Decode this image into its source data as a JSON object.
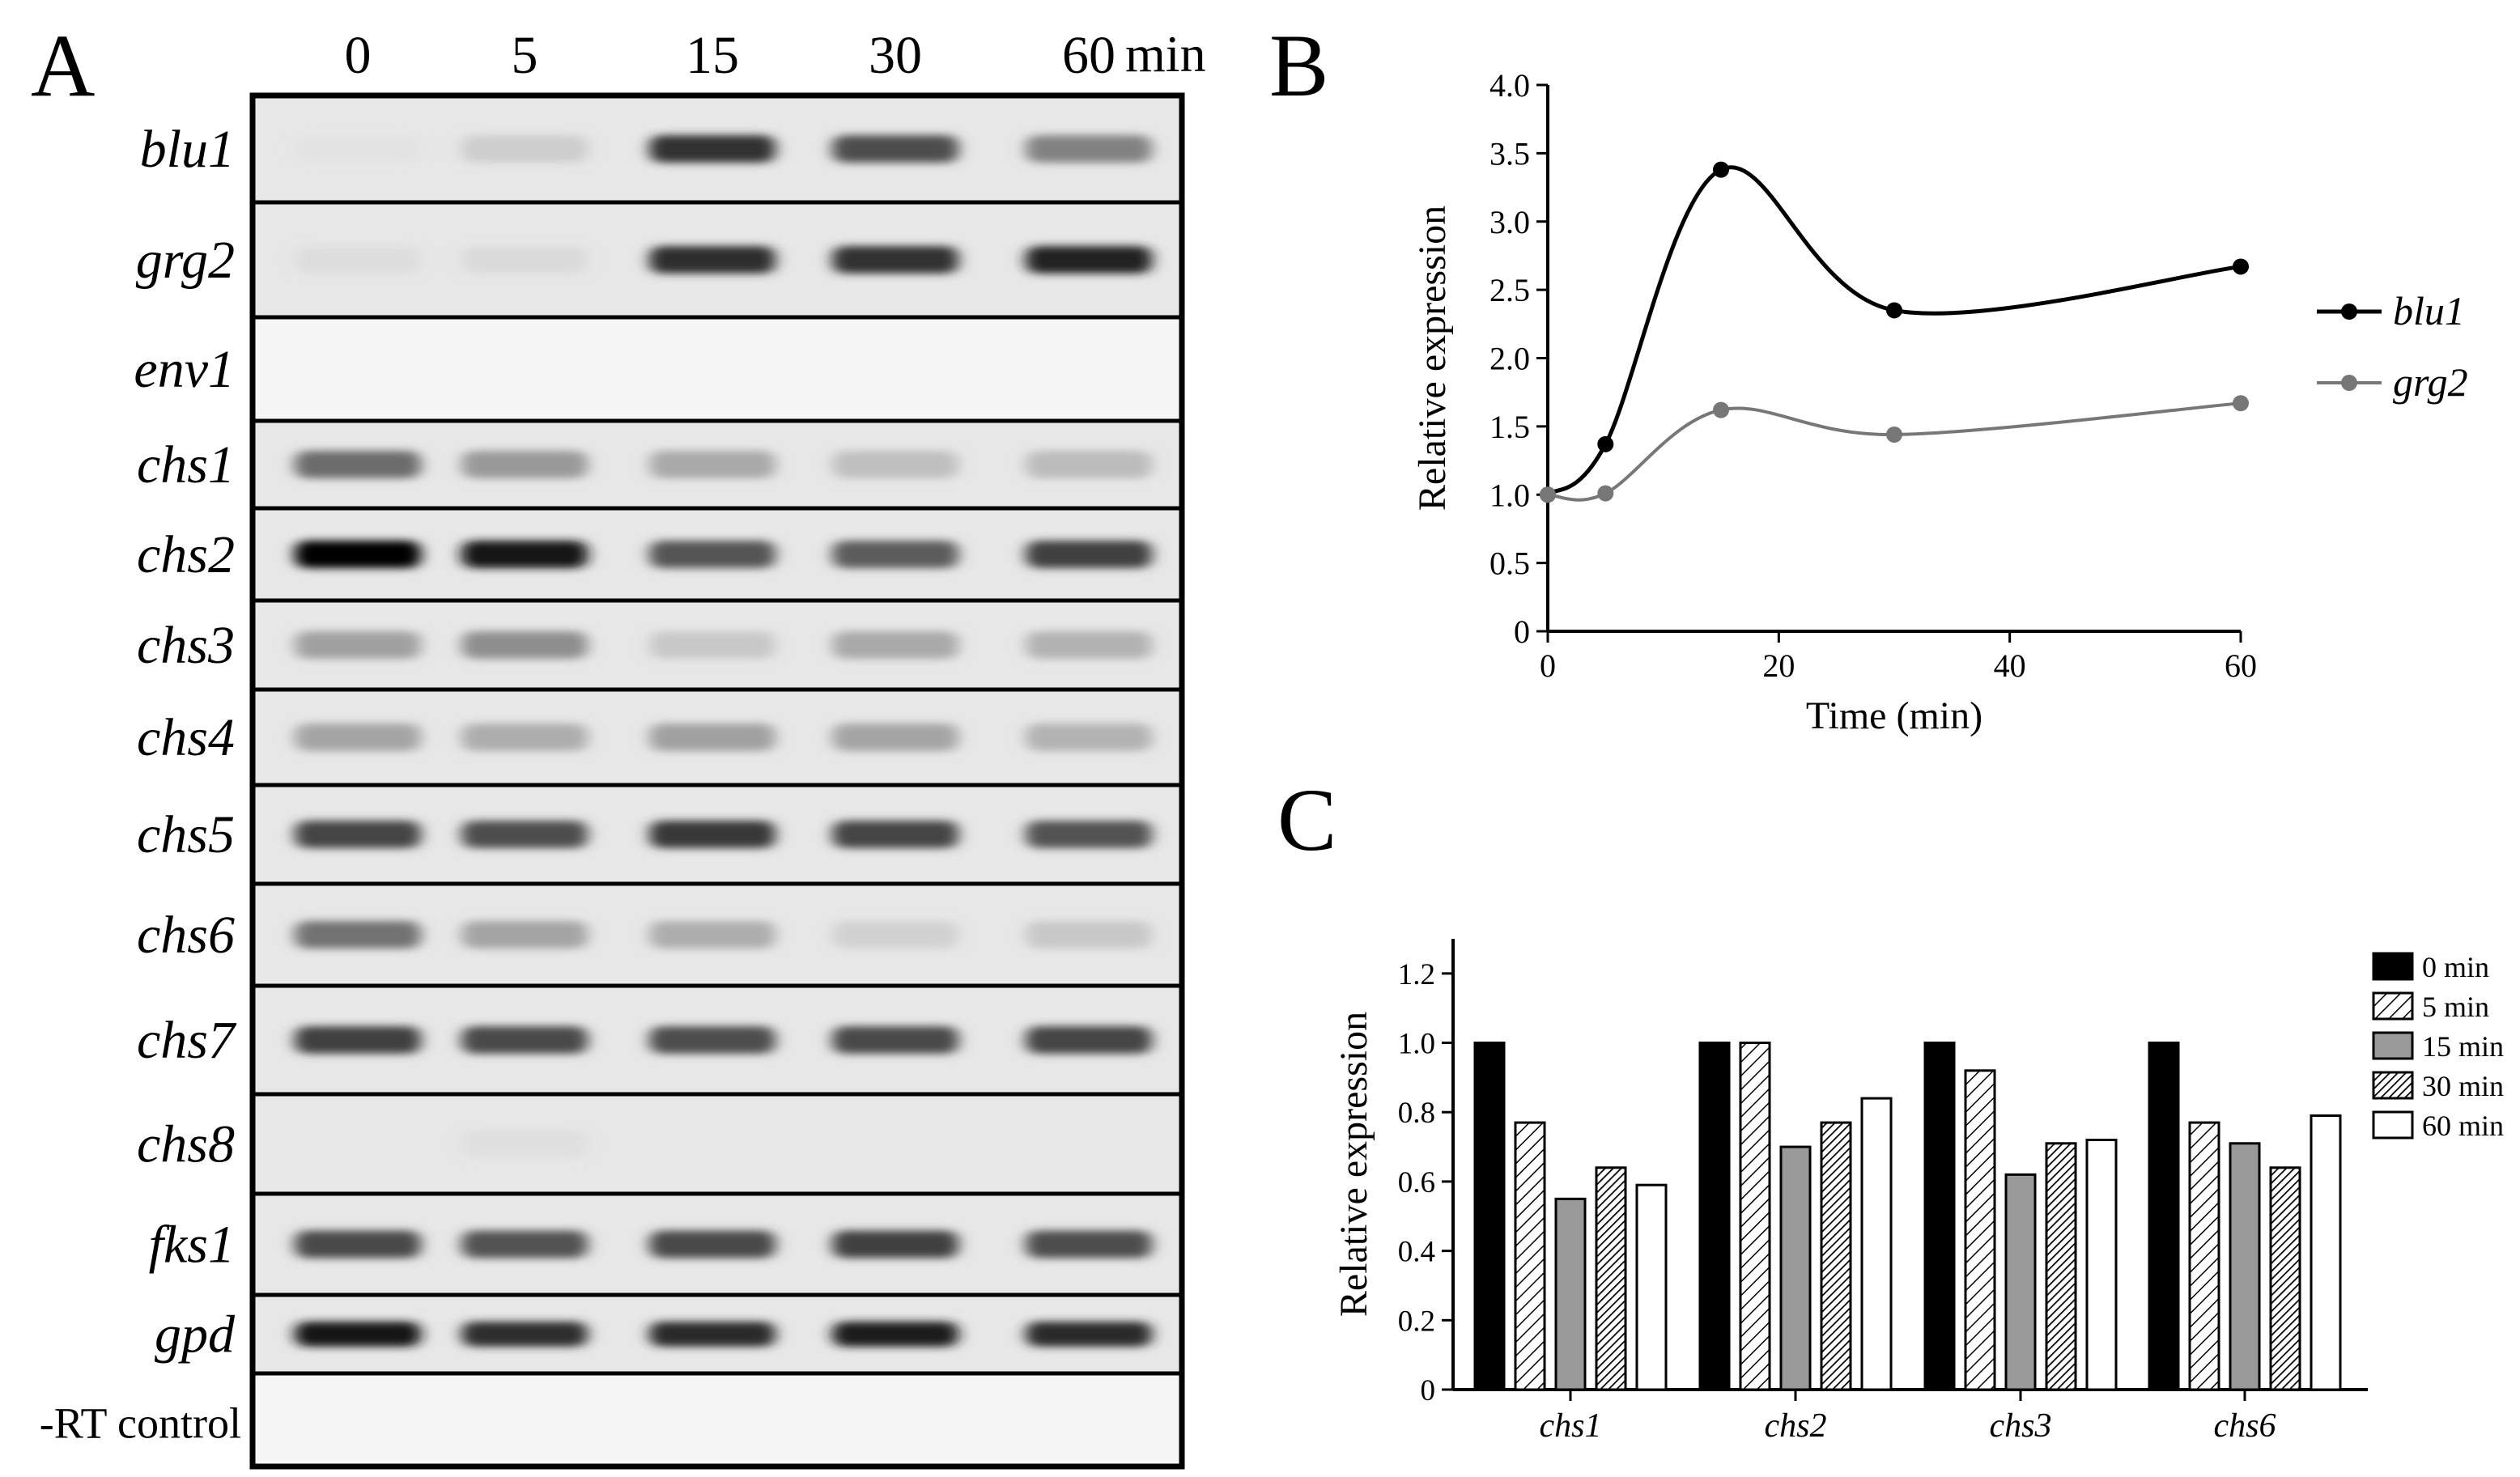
{
  "panel_a": {
    "label": "A",
    "time_labels": [
      "0",
      "5",
      "15",
      "30",
      "60"
    ],
    "time_unit": "min",
    "rows": [
      {
        "gene": "blu1",
        "italic": true,
        "bands": [
          0.02,
          0.12,
          0.8,
          0.68,
          0.45
        ]
      },
      {
        "gene": "grg2",
        "italic": true,
        "bands": [
          0.05,
          0.06,
          0.82,
          0.8,
          0.88
        ]
      },
      {
        "gene": "env1",
        "italic": true,
        "bands": [
          0,
          0,
          0,
          0,
          0
        ]
      },
      {
        "gene": "chs1",
        "italic": true,
        "bands": [
          0.55,
          0.35,
          0.28,
          0.18,
          0.2
        ]
      },
      {
        "gene": "chs2",
        "italic": true,
        "bands": [
          1.0,
          0.92,
          0.65,
          0.62,
          0.75
        ]
      },
      {
        "gene": "chs3",
        "italic": true,
        "bands": [
          0.32,
          0.4,
          0.14,
          0.28,
          0.24
        ]
      },
      {
        "gene": "chs4",
        "italic": true,
        "bands": [
          0.3,
          0.26,
          0.32,
          0.3,
          0.24
        ]
      },
      {
        "gene": "chs5",
        "italic": true,
        "bands": [
          0.72,
          0.68,
          0.78,
          0.72,
          0.66
        ]
      },
      {
        "gene": "chs6",
        "italic": true,
        "bands": [
          0.52,
          0.3,
          0.26,
          0.1,
          0.14
        ]
      },
      {
        "gene": "chs7",
        "italic": true,
        "bands": [
          0.75,
          0.7,
          0.68,
          0.7,
          0.72
        ]
      },
      {
        "gene": "chs8",
        "italic": true,
        "bands": [
          0,
          0.04,
          0,
          0,
          0
        ]
      },
      {
        "gene": "fks1",
        "italic": true,
        "bands": [
          0.7,
          0.66,
          0.7,
          0.74,
          0.68
        ]
      },
      {
        "gene": "gpd",
        "italic": true,
        "bands": [
          0.92,
          0.82,
          0.84,
          0.9,
          0.84
        ]
      },
      {
        "gene": "-RT control",
        "italic": false,
        "bands": [
          0,
          0,
          0,
          0,
          0
        ]
      }
    ]
  },
  "panel_b": {
    "label": "B",
    "legend": [
      {
        "name": "blu1",
        "color": "#000000"
      },
      {
        "name": "grg2",
        "color": "#777777"
      }
    ]
  },
  "panel_c": {
    "label": "C",
    "legend": [
      "0 min",
      "5 min",
      "15 min",
      "30 min",
      "60 min"
    ]
  },
  "chart_data": [
    {
      "type": "line",
      "panel": "B",
      "xlabel": "Time (min)",
      "ylabel": "Relative expression",
      "xlim": [
        0,
        60
      ],
      "ylim": [
        0,
        4.0
      ],
      "xticks": [
        0,
        20,
        40,
        60
      ],
      "yticks": [
        "0",
        "0.5",
        "1.0",
        "1.5",
        "2.0",
        "2.5",
        "3.0",
        "3.5",
        "4.0"
      ],
      "x": [
        0,
        5,
        15,
        30,
        60
      ],
      "series": [
        {
          "name": "blu1",
          "values": [
            1.0,
            1.37,
            3.38,
            2.35,
            2.67
          ],
          "color": "#000000"
        },
        {
          "name": "grg2",
          "values": [
            1.0,
            1.01,
            1.62,
            1.44,
            1.67
          ],
          "color": "#777777"
        }
      ],
      "legend_position": "right"
    },
    {
      "type": "bar",
      "panel": "C",
      "xlabel": "",
      "ylabel": "Relative expression",
      "ylim": [
        0,
        1.3
      ],
      "yticks": [
        "0",
        "0.2",
        "0.4",
        "0.6",
        "0.8",
        "1.0",
        "1.2"
      ],
      "categories": [
        "chs1",
        "chs2",
        "chs3",
        "chs6"
      ],
      "series": [
        {
          "name": "0 min",
          "values": [
            1.0,
            1.0,
            1.0,
            1.0
          ],
          "fill": "solid-black"
        },
        {
          "name": "5 min",
          "values": [
            0.77,
            1.0,
            0.92,
            0.77
          ],
          "fill": "hatch-thin"
        },
        {
          "name": "15 min",
          "values": [
            0.55,
            0.7,
            0.62,
            0.71
          ],
          "fill": "solid-gray"
        },
        {
          "name": "30 min",
          "values": [
            0.64,
            0.77,
            0.71,
            0.64
          ],
          "fill": "hatch-dense"
        },
        {
          "name": "60 min",
          "values": [
            0.59,
            0.84,
            0.72,
            0.79
          ],
          "fill": "white"
        }
      ],
      "legend_position": "right"
    }
  ]
}
